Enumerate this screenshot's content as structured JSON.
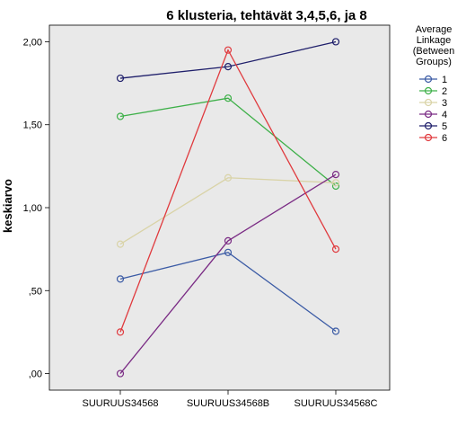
{
  "chart_data": {
    "type": "line",
    "title": "6 klusteria, tehtävät 3,4,5,6, ja 8",
    "ylabel": "keskiarvo",
    "xlabel": "",
    "categories": [
      "SUURUUS34568",
      "SUURUUS34568B",
      "SUURUUS34568C"
    ],
    "ylim": [
      -0.1,
      2.1
    ],
    "yticks": [
      0.0,
      0.5,
      1.0,
      1.5,
      2.0
    ],
    "ytick_labels": [
      ",00",
      ",50",
      "1,00",
      "1,50",
      "2,00"
    ],
    "grid": false,
    "plot_background": "#e9e9e9",
    "legend": {
      "title_lines": [
        "Average",
        "Linkage",
        "(Between",
        "Groups)"
      ],
      "placement": "right"
    },
    "series": [
      {
        "name": "1",
        "color": "#3b5ba5",
        "values": [
          0.57,
          0.73,
          0.255
        ]
      },
      {
        "name": "2",
        "color": "#3eb049",
        "values": [
          1.55,
          1.66,
          1.13
        ]
      },
      {
        "name": "3",
        "color": "#d9d3a7",
        "values": [
          0.78,
          1.18,
          1.15
        ]
      },
      {
        "name": "4",
        "color": "#7a2b84",
        "values": [
          0.0,
          0.8,
          1.2
        ]
      },
      {
        "name": "5",
        "color": "#1f1f6b",
        "values": [
          1.78,
          1.85,
          2.0
        ]
      },
      {
        "name": "6",
        "color": "#e03a3e",
        "values": [
          0.25,
          1.95,
          0.75
        ]
      }
    ]
  }
}
